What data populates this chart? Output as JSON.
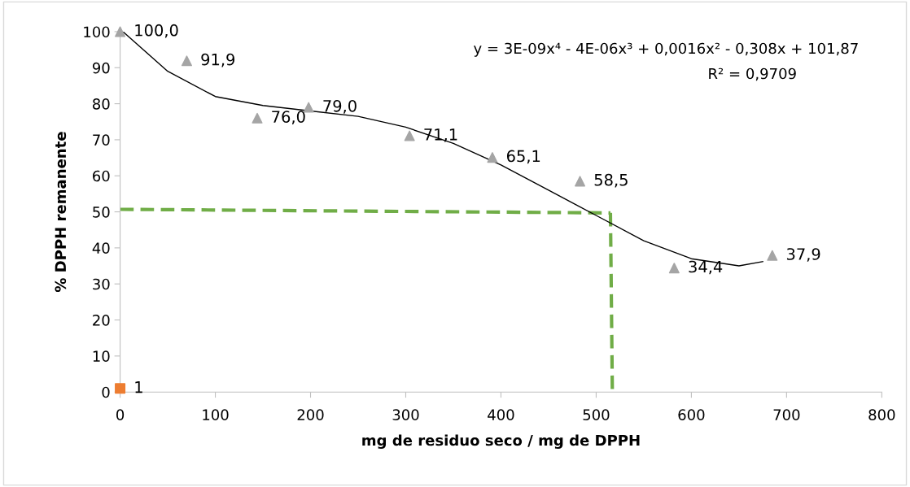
{
  "chart_data": {
    "type": "scatter",
    "xlabel": "mg de residuo seco / mg de DPPH",
    "ylabel": "% DPPH remanente",
    "xlim": [
      0,
      800
    ],
    "xticks": [
      0,
      100,
      200,
      300,
      400,
      500,
      600,
      700,
      800
    ],
    "ylim": [
      0,
      100
    ],
    "yticks": [
      0,
      10,
      20,
      30,
      40,
      50,
      60,
      70,
      80,
      90,
      100
    ],
    "grid": false,
    "legend": false,
    "annotations": [
      "y = 3E-09x⁴ - 4E-06x³ + 0,0016x² - 0,308x + 101,87",
      "R² = 0,9709"
    ],
    "series": [
      {
        "type": "line",
        "color": "#70ad47",
        "line_style": "dashed",
        "marker": "none",
        "x": [
          0,
          515
        ],
        "values": [
          50.7,
          49.7
        ]
      },
      {
        "type": "line",
        "color": "#70ad47",
        "line_style": "dashed",
        "marker": "none",
        "x": [
          515,
          517
        ],
        "values": [
          49.7,
          0
        ]
      },
      {
        "type": "line",
        "color": "#000000",
        "line_style": "solid",
        "marker": "none",
        "x": [
          3,
          50,
          100,
          150,
          200,
          250,
          300,
          350,
          400,
          450,
          500,
          550,
          600,
          650,
          675
        ],
        "values": [
          100,
          89,
          82,
          79.5,
          78,
          76.5,
          73.5,
          69,
          63,
          56,
          49,
          42,
          37,
          35,
          36.2
        ]
      },
      {
        "color": "#a5a5a5",
        "marker": "triangle",
        "x": [
          0,
          70,
          144,
          198,
          304,
          391,
          483,
          582,
          685
        ],
        "values": [
          100,
          91.9,
          76,
          79,
          71.1,
          65.1,
          58.5,
          34.4,
          37.9
        ],
        "value_labels": [
          "100,0",
          "91,9",
          "76,0",
          "79,0",
          "71,1",
          "65,1",
          "58,5",
          "34,4",
          "37,9"
        ]
      },
      {
        "color": "#ed7d31",
        "marker": "square",
        "x": [
          0
        ],
        "values": [
          1
        ],
        "value_labels": [
          "1"
        ]
      }
    ]
  }
}
